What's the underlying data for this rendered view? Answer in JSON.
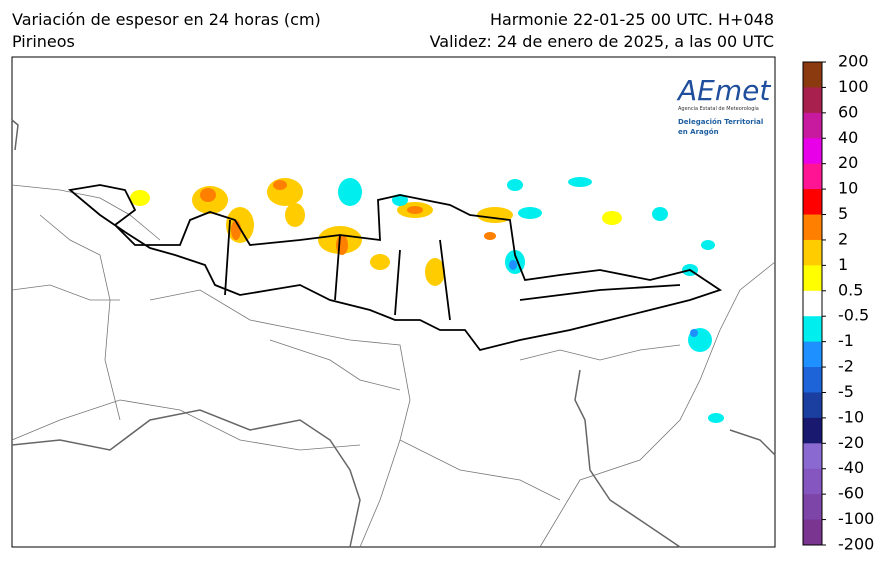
{
  "header": {
    "title": "Variación de espesor en 24 horas (cm)",
    "region": "Pirineos",
    "model": "Harmonie 22-01-25 00 UTC. H+048",
    "validity": "Validez: 24 de enero de 2025, a las 00 UTC"
  },
  "logo": {
    "brand": "AEmet",
    "agency": "Agencia Estatal de Meteorología",
    "office_line1": "Delegación Territorial",
    "office_line2": "en Aragón"
  },
  "colorbar": {
    "levels": [
      200,
      100,
      60,
      40,
      20,
      10,
      5,
      2,
      1,
      0.5,
      -0.5,
      -1,
      -2,
      -5,
      -10,
      -20,
      -40,
      -60,
      -100,
      -200
    ],
    "colors": [
      "#8b3a0f",
      "#a8204e",
      "#c81a9e",
      "#e800e8",
      "#ff1493",
      "#ff0000",
      "#ff8000",
      "#ffcc00",
      "#ffff00",
      "#ffffff",
      "#00eeee",
      "#1e90ff",
      "#1c64d8",
      "#1a3fa0",
      "#191970",
      "#8a6ad0",
      "#8555c0",
      "#7d45a8",
      "#7a3590"
    ]
  }
}
